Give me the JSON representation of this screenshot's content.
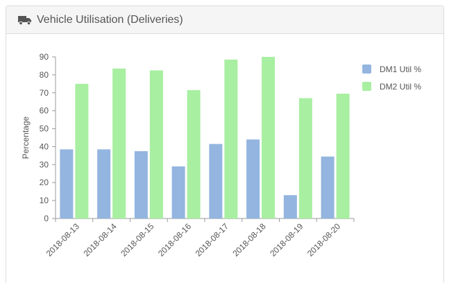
{
  "panel": {
    "title": "Vehicle Utilisation (Deliveries)",
    "icon": "truck-icon"
  },
  "chart_data": {
    "type": "bar",
    "categories": [
      "2018-08-13",
      "2018-08-14",
      "2018-08-15",
      "2018-08-16",
      "2018-08-17",
      "2018-08-18",
      "2018-08-19",
      "2018-08-20"
    ],
    "series": [
      {
        "name": "DM1 Util %",
        "color": "#93b5df",
        "values": [
          38.5,
          38.5,
          37.5,
          29,
          41.5,
          44,
          13,
          34.5
        ]
      },
      {
        "name": "DM2 Util %",
        "color": "#a8efa1",
        "values": [
          75,
          83.5,
          82.5,
          71.5,
          88.5,
          90,
          67,
          69.5
        ]
      }
    ],
    "title": "",
    "xlabel": "",
    "ylabel": "Percentage",
    "ylim": [
      0,
      90
    ],
    "yticks": [
      0,
      10,
      20,
      30,
      40,
      50,
      60,
      70,
      80,
      90
    ],
    "grid": false,
    "legend_position": "top-right"
  }
}
